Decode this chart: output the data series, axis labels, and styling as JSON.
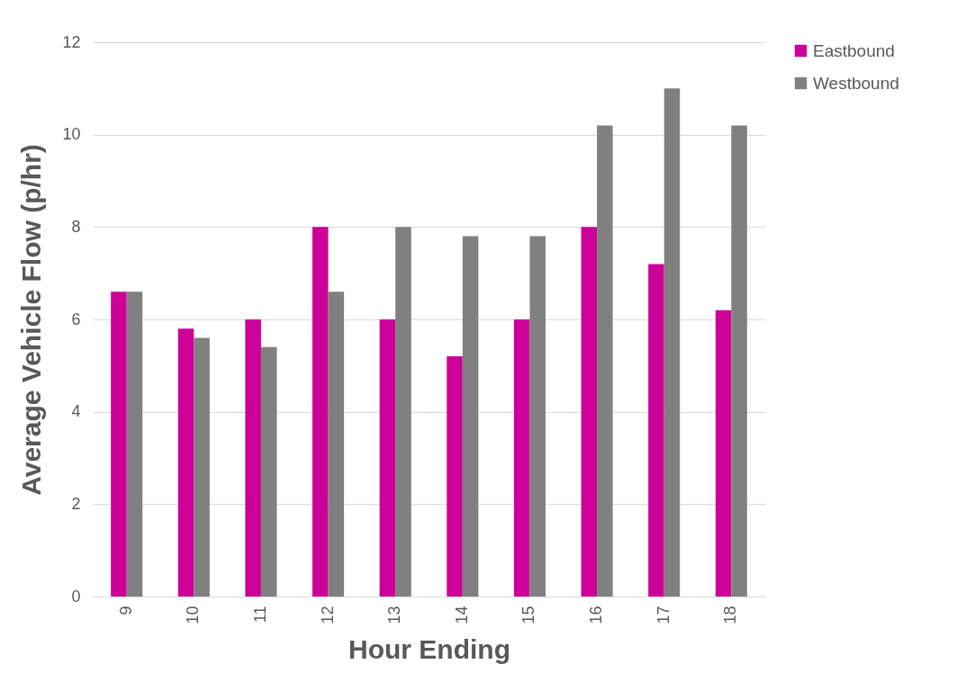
{
  "chart_data": {
    "type": "bar",
    "xlabel": "Hour Ending",
    "ylabel": "Average Vehicle Flow (p/hr)",
    "categories": [
      "9",
      "10",
      "11",
      "12",
      "13",
      "14",
      "15",
      "16",
      "17",
      "18"
    ],
    "series": [
      {
        "name": "Eastbound",
        "color": "#cc0099",
        "values": [
          6.6,
          5.8,
          6.0,
          8.0,
          6.0,
          5.2,
          6.0,
          8.0,
          7.2,
          6.2
        ]
      },
      {
        "name": "Westbound",
        "color": "#808080",
        "values": [
          6.6,
          5.6,
          5.4,
          6.6,
          8.0,
          7.8,
          7.8,
          10.2,
          11.0,
          10.2
        ]
      }
    ],
    "ylim": [
      0,
      12
    ],
    "yticks": [
      0,
      2,
      4,
      6,
      8,
      10,
      12
    ],
    "grid": "y",
    "legend": "right"
  }
}
